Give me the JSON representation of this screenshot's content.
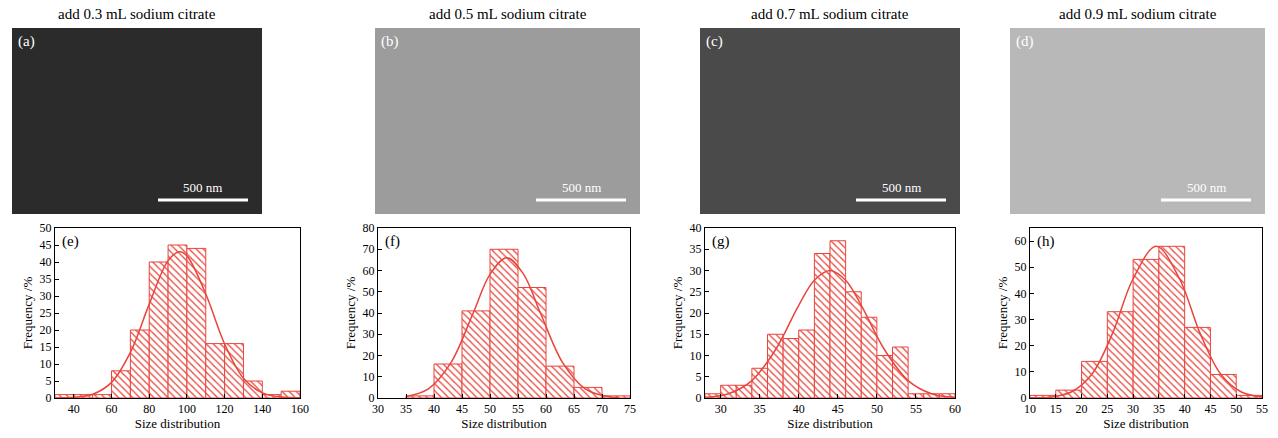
{
  "micrographs": [
    {
      "label": "(a)",
      "title": "add 0.3 mL sodium citrate",
      "scale_bar": "500 nm"
    },
    {
      "label": "(b)",
      "title": "add 0.5 mL sodium citrate",
      "scale_bar": "500 nm"
    },
    {
      "label": "(c)",
      "title": "add 0.7 mL sodium citrate",
      "scale_bar": "500 nm"
    },
    {
      "label": "(d)",
      "title": "add 0.9 mL sodium citrate",
      "scale_bar": "500 nm"
    }
  ],
  "chart_data": [
    {
      "type": "histogram",
      "label": "(e)",
      "x_label": "Size distribution",
      "y_label": "Frequency /%",
      "color": "#e8453c",
      "grid": false,
      "bins": [
        30,
        40,
        50,
        60,
        70,
        80,
        90,
        100,
        110,
        120,
        130,
        140,
        150,
        160
      ],
      "values": [
        1,
        1,
        1,
        8,
        20,
        40,
        45,
        44,
        16,
        16,
        5,
        1,
        2
      ],
      "fit": {
        "type": "line",
        "x": [
          30,
          40,
          50,
          60,
          70,
          80,
          90,
          96,
          100,
          110,
          120,
          130,
          140,
          150,
          160
        ],
        "values": [
          0.02,
          0.19,
          1.1,
          4.6,
          13.4,
          27.6,
          40.4,
          43,
          41.8,
          30.6,
          15.9,
          5.8,
          1.5,
          0.3,
          0.05
        ]
      },
      "xlim": [
        30,
        160
      ],
      "xticks": [
        40,
        60,
        80,
        100,
        120,
        140,
        160
      ],
      "ylim": [
        0,
        50
      ],
      "yticks": [
        0,
        5,
        10,
        15,
        20,
        25,
        30,
        35,
        40,
        45,
        50
      ]
    },
    {
      "type": "histogram",
      "label": "(f)",
      "x_label": "Size distribution",
      "y_label": "Frequency /%",
      "color": "#e8453c",
      "grid": false,
      "bins": [
        35,
        40,
        45,
        50,
        55,
        60,
        65,
        70,
        75
      ],
      "values": [
        1,
        16,
        41,
        70,
        52,
        15,
        5,
        1
      ],
      "fit": {
        "type": "line",
        "x": [
          35,
          39,
          43,
          47,
          50,
          53,
          56,
          59,
          63,
          67,
          71,
          73
        ],
        "values": [
          0.7,
          4.3,
          16.5,
          40,
          58.2,
          66,
          58.2,
          40,
          16.5,
          4.3,
          0.7,
          0.3
        ]
      },
      "xlim": [
        30,
        75
      ],
      "xticks": [
        30,
        35,
        40,
        45,
        50,
        55,
        60,
        65,
        70,
        75
      ],
      "ylim": [
        0,
        80
      ],
      "yticks": [
        0,
        10,
        20,
        30,
        40,
        50,
        60,
        70,
        80
      ]
    },
    {
      "type": "histogram",
      "label": "(g)",
      "x_label": "Size distribution",
      "y_label": "Frequency /%",
      "color": "#e8453c",
      "grid": false,
      "bins": [
        28,
        30,
        32,
        34,
        36,
        38,
        40,
        42,
        44,
        46,
        48,
        50,
        52,
        54,
        56,
        58,
        60
      ],
      "values": [
        1,
        3,
        3,
        7,
        15,
        14,
        16,
        34,
        37,
        25,
        19,
        10,
        12,
        1,
        1,
        1
      ],
      "fit": {
        "type": "line",
        "x": [
          28,
          31,
          34,
          37,
          40,
          42,
          44,
          46,
          48,
          51,
          54,
          57,
          60
        ],
        "values": [
          0.18,
          1.0,
          4.1,
          11.3,
          21.8,
          27.7,
          30,
          27.7,
          21.8,
          11.3,
          4.1,
          1.0,
          0.18
        ]
      },
      "xlim": [
        28,
        60
      ],
      "xticks": [
        30,
        35,
        40,
        45,
        50,
        55,
        60
      ],
      "ylim": [
        0,
        40
      ],
      "yticks": [
        0,
        5,
        10,
        15,
        20,
        25,
        30,
        35,
        40
      ]
    },
    {
      "type": "histogram",
      "label": "(h)",
      "x_label": "Size distribution",
      "y_label": "Frequency /%",
      "color": "#e8453c",
      "grid": false,
      "bins": [
        10,
        15,
        20,
        25,
        30,
        35,
        40,
        45,
        50,
        55
      ],
      "values": [
        1,
        3,
        14,
        33,
        53,
        58,
        27,
        9,
        1
      ],
      "fit": {
        "type": "line",
        "x": [
          10,
          14,
          18,
          22,
          26,
          30,
          34.5,
          39,
          43,
          47,
          51,
          55
        ],
        "values": [
          0.05,
          0.4,
          2.3,
          9.1,
          24.7,
          45.6,
          58,
          45.6,
          24.7,
          9.1,
          2.3,
          0.4
        ]
      },
      "xlim": [
        10,
        55
      ],
      "xticks": [
        10,
        15,
        20,
        25,
        30,
        35,
        40,
        45,
        50,
        55
      ],
      "ylim": [
        0,
        65
      ],
      "yticks": [
        0,
        10,
        20,
        30,
        40,
        50,
        60
      ]
    }
  ]
}
